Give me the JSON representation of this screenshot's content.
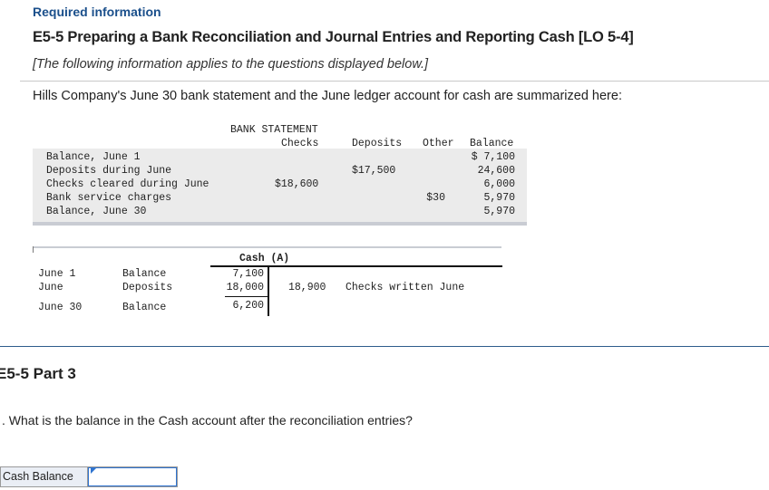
{
  "header": {
    "required": "Required information",
    "title": "E5-5 Preparing a Bank Reconciliation and Journal Entries and Reporting Cash [LO 5-4]",
    "note": "[The following information applies to the questions displayed below.]",
    "intro": "Hills Company's June 30 bank statement and the June ledger account for cash are summarized here:"
  },
  "bank_statement": {
    "heading": "BANK STATEMENT",
    "columns": [
      "Checks",
      "Deposits",
      "Other",
      "Balance"
    ],
    "rows": [
      {
        "label": "Balance, June 1",
        "checks": "",
        "deposits": "",
        "other": "",
        "balance": "$ 7,100"
      },
      {
        "label": "Deposits during June",
        "checks": "",
        "deposits": "$17,500",
        "other": "",
        "balance": "24,600"
      },
      {
        "label": "Checks cleared during June",
        "checks": "$18,600",
        "deposits": "",
        "other": "",
        "balance": "6,000"
      },
      {
        "label": "Bank service charges",
        "checks": "",
        "deposits": "",
        "other": "$30",
        "balance": "5,970"
      },
      {
        "label": "Balance, June 30",
        "checks": "",
        "deposits": "",
        "other": "",
        "balance": "5,970"
      }
    ]
  },
  "cash_account": {
    "title": "Cash (A)",
    "rows": [
      {
        "date": "June 1",
        "desc": "Balance",
        "debit": "7,100"
      },
      {
        "date": "June",
        "desc": "Deposits",
        "debit": "18,000",
        "credit": "18,900",
        "credit_desc": "Checks written June"
      },
      {
        "date": "June 30",
        "desc": "Balance",
        "debit": "6,200"
      }
    ]
  },
  "part": {
    "title": "E5-5 Part 3",
    "question": ". What is the balance in the Cash account after the reconciliation entries?"
  },
  "answer": {
    "label": "Cash Balance",
    "value": ""
  }
}
